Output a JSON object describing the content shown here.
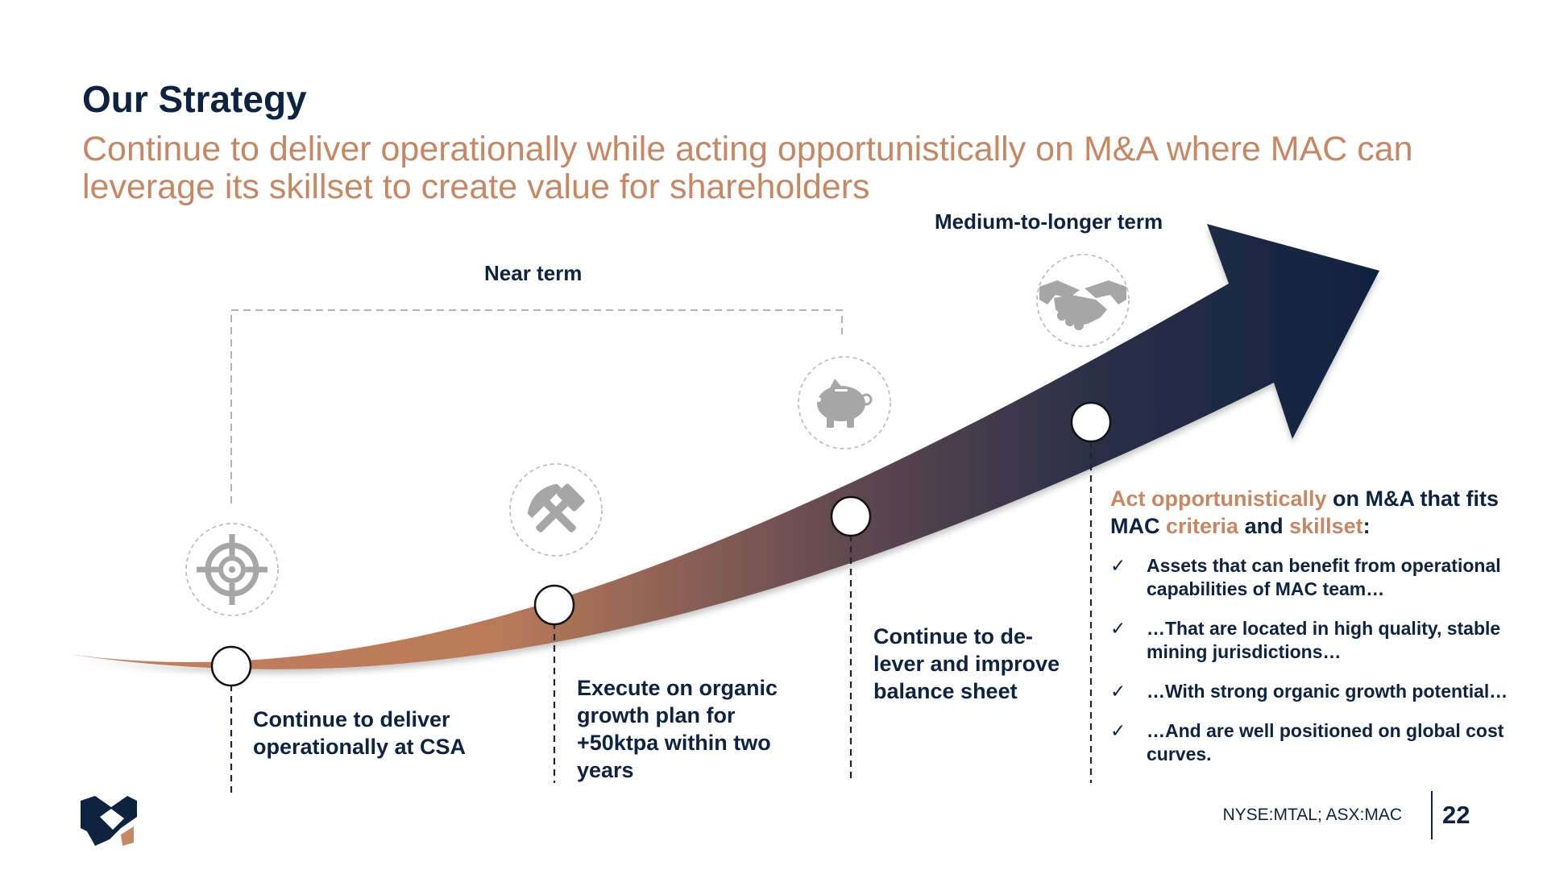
{
  "header": {
    "title": "Our Strategy",
    "subtitle": "Continue to deliver operationally while acting opportunistically on M&A where MAC can leverage its skillset to create value for shareholders"
  },
  "timeline": {
    "near_term_label": "Near term",
    "longer_term_label": "Medium-to-longer term",
    "steps": [
      {
        "text": "Continue to deliver operationally at CSA",
        "icon": "target-icon"
      },
      {
        "text": "Execute on organic growth plan for +50ktpa within two years",
        "icon": "hammer-pick-icon"
      },
      {
        "text": "Continue to de-lever and improve balance sheet",
        "icon": "piggy-bank-icon"
      }
    ],
    "longer_term_icon": "handshake-icon"
  },
  "ma": {
    "heading_parts": [
      "Act opportunistically",
      " on M&A that fits MAC ",
      "criteria",
      " and ",
      "skillset",
      ":"
    ],
    "check_symbol": "✓",
    "bullets": [
      "Assets that can benefit from operational capabilities of MAC team…",
      "…That are located in high quality, stable mining jurisdictions…",
      "…With strong organic growth potential…",
      "…And are well positioned on global cost curves."
    ]
  },
  "footer": {
    "ticker": "NYSE:MTAL; ASX:MAC",
    "page_number": "22",
    "logo_icon": "mac-logo-icon"
  },
  "colors": {
    "navy": "#0e2340",
    "copper": "#c88763",
    "icon_gray": "#a6a6a6"
  }
}
